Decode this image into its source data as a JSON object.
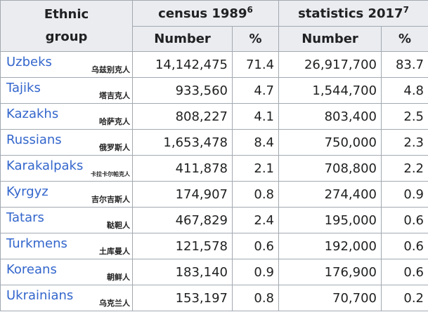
{
  "header": {
    "group_line1": "Ethnic",
    "group_line2": "group",
    "census": "census 1989",
    "census_note": "6",
    "stats": "statistics 2017",
    "stats_note": "7",
    "number": "Number",
    "percent": "%"
  },
  "rows": [
    {
      "name": "Uzbeks",
      "cn": "乌兹别克人",
      "n1989": "14,142,475",
      "p1989": "71.4",
      "n2017": "26,917,700",
      "p2017": "83.7"
    },
    {
      "name": "Tajiks",
      "cn": "塔吉克人",
      "n1989": "933,560",
      "p1989": "4.7",
      "n2017": "1,544,700",
      "p2017": "4.8"
    },
    {
      "name": "Kazakhs",
      "cn": "哈萨克人",
      "n1989": "808,227",
      "p1989": "4.1",
      "n2017": "803,400",
      "p2017": "2.5"
    },
    {
      "name": "Russians",
      "cn": "俄罗斯人",
      "n1989": "1,653,478",
      "p1989": "8.4",
      "n2017": "750,000",
      "p2017": "2.3"
    },
    {
      "name": "Karakalpaks",
      "cn": "卡拉卡尔帕克人",
      "n1989": "411,878",
      "p1989": "2.1",
      "n2017": "708,800",
      "p2017": "2.2"
    },
    {
      "name": "Kyrgyz",
      "cn": "吉尔吉斯人",
      "n1989": "174,907",
      "p1989": "0.8",
      "n2017": "274,400",
      "p2017": "0.9"
    },
    {
      "name": "Tatars",
      "cn": "鞑靼人",
      "n1989": "467,829",
      "p1989": "2.4",
      "n2017": "195,000",
      "p2017": "0.6"
    },
    {
      "name": "Turkmens",
      "cn": "土库曼人",
      "n1989": "121,578",
      "p1989": "0.6",
      "n2017": "192,000",
      "p2017": "0.6"
    },
    {
      "name": "Koreans",
      "cn": "朝鲜人",
      "n1989": "183,140",
      "p1989": "0.9",
      "n2017": "176,900",
      "p2017": "0.6"
    },
    {
      "name": "Ukrainians",
      "cn": "乌克兰人",
      "n1989": "153,197",
      "p1989": "0.8",
      "n2017": "70,700",
      "p2017": "0.2"
    }
  ]
}
